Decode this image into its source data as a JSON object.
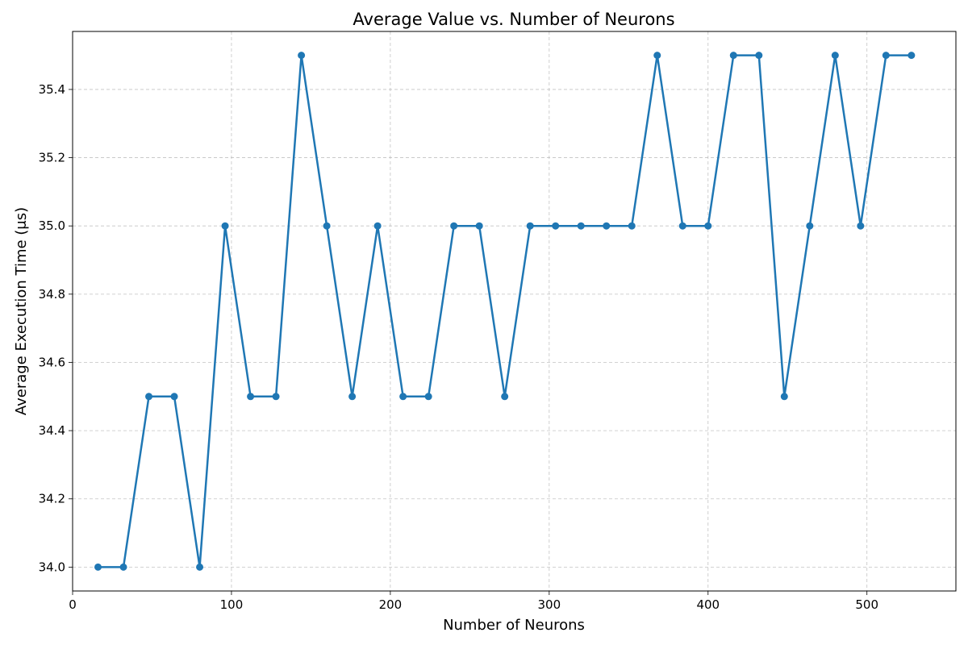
{
  "chart_data": {
    "type": "line",
    "title": "Average Value vs. Number of Neurons",
    "xlabel": "Number of Neurons",
    "ylabel": "Average Execution Time (μs)",
    "xlim": [
      0,
      556
    ],
    "ylim": [
      33.93,
      35.57
    ],
    "x_ticks": [
      0,
      100,
      200,
      300,
      400,
      500
    ],
    "y_ticks": [
      34.0,
      34.2,
      34.4,
      34.6,
      34.8,
      35.0,
      35.2,
      35.4
    ],
    "grid": true,
    "series": [
      {
        "color": "#1f77b4",
        "marker": "circle",
        "x": [
          16,
          32,
          48,
          64,
          80,
          96,
          112,
          128,
          144,
          160,
          176,
          192,
          208,
          224,
          240,
          256,
          272,
          288,
          304,
          320,
          336,
          352,
          368,
          384,
          400,
          416,
          432,
          448,
          464,
          480,
          496,
          512,
          528
        ],
        "y": [
          34.0,
          34.0,
          34.5,
          34.5,
          34.0,
          35.0,
          34.5,
          34.5,
          35.5,
          35.0,
          34.5,
          35.0,
          34.5,
          34.5,
          35.0,
          35.0,
          34.5,
          35.0,
          35.0,
          35.0,
          35.0,
          35.0,
          35.5,
          35.0,
          35.0,
          35.5,
          35.5,
          34.5,
          35.0,
          35.5,
          35.0,
          35.5,
          35.5
        ]
      }
    ]
  }
}
